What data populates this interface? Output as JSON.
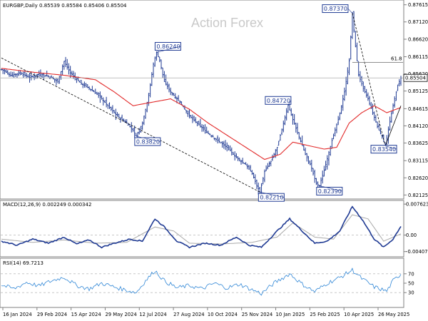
{
  "chart_data": [
    {
      "type": "ohlc",
      "title": "EURGBP,Daily  0.85539 0.85584 0.85406 0.85504",
      "watermark": "Action Forex",
      "ylim": [
        0.8207,
        0.8767
      ],
      "y_ticks": [
        "0.87615",
        "0.87120",
        "0.86620",
        "0.86115",
        "0.85620",
        "0.85125",
        "0.84615",
        "0.84120",
        "0.83625",
        "0.83115",
        "0.82620",
        "0.82125"
      ],
      "current_price": "0.85504",
      "x_ticks": [
        "16 Jan 2024",
        "29 Feb 2024",
        "15 Apr 2024",
        "29 May 2024",
        "12 Jul 2024",
        "27 Aug 2024",
        "10 Oct 2024",
        "25 Nov 2024",
        "10 Jan 2025",
        "25 Feb 2025",
        "10 Apr 2025",
        "26 May 2025"
      ],
      "price_points": [
        {
          "x": 0,
          "y": 0.8575
        },
        {
          "x": 6,
          "y": 0.8558
        },
        {
          "x": 12,
          "y": 0.8565
        },
        {
          "x": 18,
          "y": 0.8552
        },
        {
          "x": 24,
          "y": 0.8562
        },
        {
          "x": 30,
          "y": 0.8555
        },
        {
          "x": 36,
          "y": 0.854
        },
        {
          "x": 40,
          "y": 0.8598
        },
        {
          "x": 44,
          "y": 0.8565
        },
        {
          "x": 50,
          "y": 0.8538
        },
        {
          "x": 56,
          "y": 0.852
        },
        {
          "x": 62,
          "y": 0.85
        },
        {
          "x": 68,
          "y": 0.847
        },
        {
          "x": 74,
          "y": 0.844
        },
        {
          "x": 80,
          "y": 0.842
        },
        {
          "x": 84,
          "y": 0.84
        },
        {
          "x": 86,
          "y": 0.8382
        },
        {
          "x": 90,
          "y": 0.842
        },
        {
          "x": 94,
          "y": 0.85
        },
        {
          "x": 97,
          "y": 0.859
        },
        {
          "x": 99,
          "y": 0.8624
        },
        {
          "x": 101,
          "y": 0.86
        },
        {
          "x": 104,
          "y": 0.854
        },
        {
          "x": 108,
          "y": 0.851
        },
        {
          "x": 114,
          "y": 0.848
        },
        {
          "x": 120,
          "y": 0.844
        },
        {
          "x": 126,
          "y": 0.8415
        },
        {
          "x": 132,
          "y": 0.839
        },
        {
          "x": 138,
          "y": 0.837
        },
        {
          "x": 144,
          "y": 0.835
        },
        {
          "x": 150,
          "y": 0.832
        },
        {
          "x": 156,
          "y": 0.83
        },
        {
          "x": 160,
          "y": 0.8275
        },
        {
          "x": 163,
          "y": 0.824
        },
        {
          "x": 165,
          "y": 0.8221
        },
        {
          "x": 168,
          "y": 0.828
        },
        {
          "x": 172,
          "y": 0.831
        },
        {
          "x": 176,
          "y": 0.835
        },
        {
          "x": 180,
          "y": 0.842
        },
        {
          "x": 183,
          "y": 0.8472
        },
        {
          "x": 186,
          "y": 0.843
        },
        {
          "x": 190,
          "y": 0.838
        },
        {
          "x": 194,
          "y": 0.833
        },
        {
          "x": 198,
          "y": 0.829
        },
        {
          "x": 201,
          "y": 0.8245
        },
        {
          "x": 203,
          "y": 0.8239
        },
        {
          "x": 207,
          "y": 0.83
        },
        {
          "x": 211,
          "y": 0.837
        },
        {
          "x": 215,
          "y": 0.843
        },
        {
          "x": 219,
          "y": 0.851
        },
        {
          "x": 222,
          "y": 0.86
        },
        {
          "x": 224,
          "y": 0.8737
        },
        {
          "x": 226,
          "y": 0.864
        },
        {
          "x": 228,
          "y": 0.856
        },
        {
          "x": 231,
          "y": 0.852
        },
        {
          "x": 234,
          "y": 0.849
        },
        {
          "x": 237,
          "y": 0.845
        },
        {
          "x": 240,
          "y": 0.841
        },
        {
          "x": 243,
          "y": 0.838
        },
        {
          "x": 245,
          "y": 0.8354
        },
        {
          "x": 247,
          "y": 0.84
        },
        {
          "x": 250,
          "y": 0.847
        },
        {
          "x": 253,
          "y": 0.853
        },
        {
          "x": 255,
          "y": 0.855
        }
      ],
      "ma_points": [
        {
          "x": 0,
          "y": 0.8578
        },
        {
          "x": 20,
          "y": 0.8567
        },
        {
          "x": 40,
          "y": 0.8558
        },
        {
          "x": 60,
          "y": 0.8545
        },
        {
          "x": 72,
          "y": 0.851
        },
        {
          "x": 84,
          "y": 0.847
        },
        {
          "x": 96,
          "y": 0.848
        },
        {
          "x": 108,
          "y": 0.849
        },
        {
          "x": 120,
          "y": 0.846
        },
        {
          "x": 132,
          "y": 0.842
        },
        {
          "x": 144,
          "y": 0.8385
        },
        {
          "x": 156,
          "y": 0.835
        },
        {
          "x": 168,
          "y": 0.8315
        },
        {
          "x": 178,
          "y": 0.833
        },
        {
          "x": 186,
          "y": 0.8365
        },
        {
          "x": 196,
          "y": 0.8355
        },
        {
          "x": 206,
          "y": 0.8345
        },
        {
          "x": 214,
          "y": 0.835
        },
        {
          "x": 222,
          "y": 0.842
        },
        {
          "x": 230,
          "y": 0.845
        },
        {
          "x": 238,
          "y": 0.847
        },
        {
          "x": 246,
          "y": 0.845
        },
        {
          "x": 255,
          "y": 0.8465
        }
      ],
      "labels": [
        {
          "text": "0.86240",
          "x": 99,
          "y": 0.8624
        },
        {
          "text": "0.83820",
          "x": 86,
          "y": 0.8382
        },
        {
          "text": "0.84720",
          "x": 183,
          "y": 0.8472
        },
        {
          "text": "0.82210",
          "x": 165,
          "y": 0.8221
        },
        {
          "text": "0.82390",
          "x": 203,
          "y": 0.8239
        },
        {
          "text": "0.87370",
          "x": 224,
          "y": 0.8737
        },
        {
          "text": "0.83540",
          "x": 245,
          "y": 0.8354
        }
      ],
      "fib_label": "61.8",
      "fib_level": 0.8595,
      "trendline": [
        {
          "x": 0,
          "y": 0.8608
        },
        {
          "x": 165,
          "y": 0.8221
        }
      ],
      "trendline2": [
        {
          "x": 224,
          "y": 0.8737
        },
        {
          "x": 245,
          "y": 0.8354
        }
      ],
      "channel_line": [
        {
          "x": 224,
          "y": 0.8595
        },
        {
          "x": 255,
          "y": 0.8595
        }
      ],
      "colors": {
        "bars": "#1f3a93",
        "ma": "#e22b2b",
        "grid": "#c8c8c8"
      }
    },
    {
      "type": "line",
      "title": "MACD(12,26,9) 0.002249 0.000342",
      "ylim": [
        -0.005,
        0.008
      ],
      "y_ticks": [
        "0.007623",
        "0.00",
        "-0.004073"
      ],
      "series": [
        {
          "name": "MACD",
          "color": "#1f3a93",
          "values": [
            {
              "x": 0,
              "y": -0.0015
            },
            {
              "x": 10,
              "y": -0.0025
            },
            {
              "x": 20,
              "y": -0.001
            },
            {
              "x": 30,
              "y": -0.002
            },
            {
              "x": 40,
              "y": -0.0005
            },
            {
              "x": 48,
              "y": -0.0022
            },
            {
              "x": 56,
              "y": -0.0012
            },
            {
              "x": 64,
              "y": -0.003
            },
            {
              "x": 72,
              "y": -0.002
            },
            {
              "x": 82,
              "y": -0.001
            },
            {
              "x": 90,
              "y": -0.0015
            },
            {
              "x": 98,
              "y": 0.004
            },
            {
              "x": 104,
              "y": 0.002
            },
            {
              "x": 112,
              "y": -0.0015
            },
            {
              "x": 120,
              "y": -0.003
            },
            {
              "x": 130,
              "y": -0.002
            },
            {
              "x": 140,
              "y": -0.0025
            },
            {
              "x": 150,
              "y": -0.0005
            },
            {
              "x": 158,
              "y": -0.0025
            },
            {
              "x": 166,
              "y": -0.003
            },
            {
              "x": 176,
              "y": 0.001
            },
            {
              "x": 184,
              "y": 0.004
            },
            {
              "x": 192,
              "y": 0.001
            },
            {
              "x": 200,
              "y": -0.002
            },
            {
              "x": 208,
              "y": -0.0015
            },
            {
              "x": 216,
              "y": 0.001
            },
            {
              "x": 224,
              "y": 0.007
            },
            {
              "x": 230,
              "y": 0.004
            },
            {
              "x": 238,
              "y": -0.001
            },
            {
              "x": 244,
              "y": -0.003
            },
            {
              "x": 250,
              "y": -0.001
            },
            {
              "x": 255,
              "y": 0.0022
            }
          ]
        },
        {
          "name": "Signal",
          "color": "#a9a9a9",
          "values": [
            {
              "x": 0,
              "y": -0.001
            },
            {
              "x": 20,
              "y": -0.0018
            },
            {
              "x": 40,
              "y": -0.0012
            },
            {
              "x": 60,
              "y": -0.002
            },
            {
              "x": 80,
              "y": -0.0018
            },
            {
              "x": 98,
              "y": 0.002
            },
            {
              "x": 110,
              "y": 0.001
            },
            {
              "x": 120,
              "y": -0.002
            },
            {
              "x": 140,
              "y": -0.0022
            },
            {
              "x": 160,
              "y": -0.0018
            },
            {
              "x": 176,
              "y": -0.0005
            },
            {
              "x": 186,
              "y": 0.003
            },
            {
              "x": 200,
              "y": -0.0005
            },
            {
              "x": 212,
              "y": -0.001
            },
            {
              "x": 224,
              "y": 0.005
            },
            {
              "x": 234,
              "y": 0.004
            },
            {
              "x": 244,
              "y": -0.0015
            },
            {
              "x": 255,
              "y": 0.0003
            }
          ]
        }
      ]
    },
    {
      "type": "line",
      "title": "RSI(14) 69.7213",
      "ylim": [
        0,
        100
      ],
      "y_ticks": [
        "70",
        "50",
        "30"
      ],
      "series": [
        {
          "name": "RSI",
          "color": "#2f86d6",
          "values": [
            {
              "x": 0,
              "y": 46
            },
            {
              "x": 8,
              "y": 38
            },
            {
              "x": 16,
              "y": 52
            },
            {
              "x": 24,
              "y": 44
            },
            {
              "x": 32,
              "y": 55
            },
            {
              "x": 40,
              "y": 63
            },
            {
              "x": 48,
              "y": 45
            },
            {
              "x": 56,
              "y": 38
            },
            {
              "x": 64,
              "y": 50
            },
            {
              "x": 72,
              "y": 42
            },
            {
              "x": 80,
              "y": 35
            },
            {
              "x": 86,
              "y": 30
            },
            {
              "x": 92,
              "y": 55
            },
            {
              "x": 98,
              "y": 77
            },
            {
              "x": 104,
              "y": 55
            },
            {
              "x": 112,
              "y": 40
            },
            {
              "x": 120,
              "y": 45
            },
            {
              "x": 128,
              "y": 38
            },
            {
              "x": 136,
              "y": 50
            },
            {
              "x": 144,
              "y": 40
            },
            {
              "x": 152,
              "y": 48
            },
            {
              "x": 160,
              "y": 36
            },
            {
              "x": 166,
              "y": 28
            },
            {
              "x": 174,
              "y": 50
            },
            {
              "x": 184,
              "y": 70
            },
            {
              "x": 192,
              "y": 48
            },
            {
              "x": 200,
              "y": 32
            },
            {
              "x": 208,
              "y": 50
            },
            {
              "x": 216,
              "y": 62
            },
            {
              "x": 224,
              "y": 78
            },
            {
              "x": 230,
              "y": 60
            },
            {
              "x": 238,
              "y": 42
            },
            {
              "x": 246,
              "y": 33
            },
            {
              "x": 250,
              "y": 55
            },
            {
              "x": 255,
              "y": 69.7
            }
          ]
        }
      ],
      "levels": [
        70,
        30
      ]
    }
  ]
}
